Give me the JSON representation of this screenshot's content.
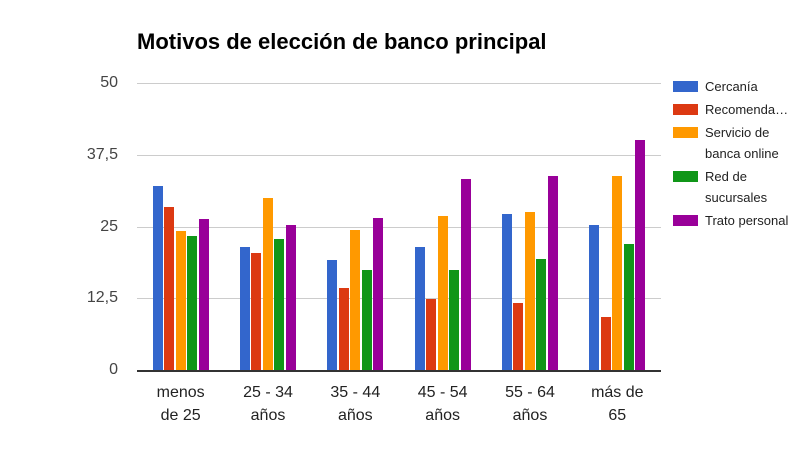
{
  "chart_data": {
    "type": "bar",
    "title": "Motivos de elección de banco principal",
    "orientation": "vertical-grouped",
    "categories": [
      "menos de 25",
      "25 - 34 años",
      "35 - 44 años",
      "45 - 54 años",
      "55 - 64 años",
      "más de 65"
    ],
    "category_label_lines": [
      [
        "menos",
        "de 25"
      ],
      [
        "25 - 34",
        "años"
      ],
      [
        "35 - 44",
        "años"
      ],
      [
        "45 - 54",
        "años"
      ],
      [
        "55 - 64",
        "años"
      ],
      [
        "más de",
        "65"
      ]
    ],
    "series": [
      {
        "name": "Cercanía",
        "color": "#3366CC",
        "values": [
          32.1,
          21.5,
          19.2,
          21.4,
          27.2,
          25.3
        ]
      },
      {
        "name": "Recomenda…",
        "color": "#DC3912",
        "values": [
          28.4,
          20.3,
          14.3,
          12.4,
          11.6,
          9.2
        ]
      },
      {
        "name": "Servicio de banca online",
        "color": "#FF9900",
        "values": [
          24.3,
          30.0,
          24.4,
          26.9,
          27.6,
          33.8
        ]
      },
      {
        "name": "Red de sucursales",
        "color": "#109618",
        "values": [
          23.3,
          22.9,
          17.4,
          17.5,
          19.4,
          22.0
        ]
      },
      {
        "name": "Trato personal",
        "color": "#990099",
        "values": [
          26.3,
          25.3,
          26.5,
          33.2,
          33.8,
          40.1
        ]
      }
    ],
    "y_axis": {
      "min": 0,
      "max": 50,
      "ticks": [
        {
          "label": "50",
          "value": 50
        },
        {
          "label": "37,5",
          "value": 37.5
        },
        {
          "label": "25",
          "value": 25
        },
        {
          "label": "12,5",
          "value": 12.5
        },
        {
          "label": "0",
          "value": 0
        }
      ]
    },
    "grid": true,
    "legend_position": "right",
    "colors": {
      "background": "#ffffff",
      "grid": "#cccccc",
      "baseline": "#333333",
      "title_text": "#000000",
      "tick_text": "#444444",
      "category_text": "#222222",
      "legend_text": "#222222"
    }
  }
}
